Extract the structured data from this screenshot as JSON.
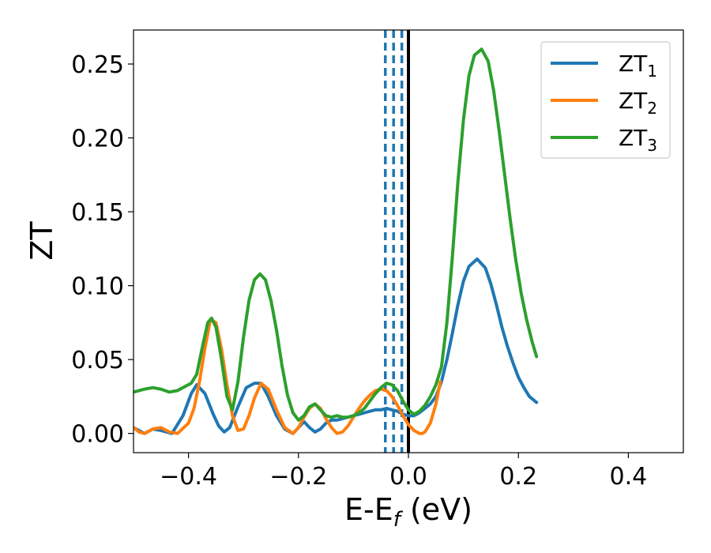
{
  "chart_data": {
    "type": "line",
    "title": "",
    "xlabel": {
      "main": "E-E",
      "sub": "f",
      "unit": " (eV)"
    },
    "ylabel": "ZT",
    "xlim": [
      -0.5,
      0.5
    ],
    "ylim": [
      -0.013,
      0.273
    ],
    "x_ticks": [
      -0.4,
      -0.2,
      0.0,
      0.2,
      0.4
    ],
    "x_tick_labels": [
      "−0.4",
      "−0.2",
      "0.0",
      "0.2",
      "0.4"
    ],
    "y_ticks": [
      0.0,
      0.05,
      0.1,
      0.15,
      0.2,
      0.25
    ],
    "y_tick_labels": [
      "0.00",
      "0.05",
      "0.10",
      "0.15",
      "0.20",
      "0.25"
    ],
    "grid": false,
    "legend_position": "top-right",
    "vertical_lines": [
      {
        "x": -0.042,
        "style": "dashed",
        "color": "#1f77b4"
      },
      {
        "x": -0.027,
        "style": "dashed",
        "color": "#1f77b4"
      },
      {
        "x": -0.012,
        "style": "dashed",
        "color": "#1f77b4"
      },
      {
        "x": 0.0,
        "style": "solid",
        "color": "#000000"
      }
    ],
    "series": [
      {
        "name": "ZT",
        "name_sub": "1",
        "color": "#1f77b4",
        "x": [
          -0.5,
          -0.48,
          -0.465,
          -0.45,
          -0.43,
          -0.41,
          -0.395,
          -0.385,
          -0.37,
          -0.355,
          -0.345,
          -0.335,
          -0.325,
          -0.31,
          -0.295,
          -0.28,
          -0.268,
          -0.255,
          -0.24,
          -0.225,
          -0.21,
          -0.2,
          -0.19,
          -0.18,
          -0.17,
          -0.16,
          -0.15,
          -0.14,
          -0.13,
          -0.12,
          -0.11,
          -0.1,
          -0.09,
          -0.08,
          -0.07,
          -0.06,
          -0.05,
          -0.04,
          -0.03,
          -0.02,
          -0.01,
          0.0,
          0.01,
          0.02,
          0.03,
          0.04,
          0.05,
          0.06,
          0.07,
          0.08,
          0.09,
          0.1,
          0.11,
          0.125,
          0.14,
          0.15,
          0.16,
          0.17,
          0.18,
          0.19,
          0.2,
          0.21,
          0.22,
          0.233
        ],
        "y": [
          0.004,
          0.0,
          0.003,
          0.002,
          0.0,
          0.012,
          0.027,
          0.033,
          0.027,
          0.013,
          0.005,
          0.001,
          0.004,
          0.018,
          0.031,
          0.034,
          0.034,
          0.025,
          0.012,
          0.003,
          0.0,
          0.004,
          0.008,
          0.004,
          0.001,
          0.003,
          0.007,
          0.009,
          0.009,
          0.01,
          0.011,
          0.012,
          0.013,
          0.014,
          0.015,
          0.016,
          0.016,
          0.017,
          0.016,
          0.015,
          0.013,
          0.012,
          0.012,
          0.014,
          0.017,
          0.02,
          0.025,
          0.035,
          0.05,
          0.068,
          0.087,
          0.103,
          0.113,
          0.118,
          0.112,
          0.101,
          0.087,
          0.072,
          0.059,
          0.048,
          0.038,
          0.031,
          0.025,
          0.021
        ]
      },
      {
        "name": "ZT",
        "name_sub": "2",
        "color": "#ff7f0e",
        "x": [
          -0.5,
          -0.49,
          -0.48,
          -0.465,
          -0.45,
          -0.435,
          -0.42,
          -0.4,
          -0.39,
          -0.38,
          -0.37,
          -0.36,
          -0.35,
          -0.34,
          -0.33,
          -0.32,
          -0.31,
          -0.3,
          -0.29,
          -0.28,
          -0.268,
          -0.255,
          -0.24,
          -0.225,
          -0.21,
          -0.2,
          -0.19,
          -0.18,
          -0.17,
          -0.16,
          -0.15,
          -0.14,
          -0.13,
          -0.12,
          -0.11,
          -0.1,
          -0.09,
          -0.08,
          -0.07,
          -0.06,
          -0.05,
          -0.04,
          -0.03,
          -0.02,
          -0.01,
          0.0,
          0.01,
          0.02,
          0.025,
          0.03,
          0.04,
          0.05,
          0.058
        ],
        "y": [
          0.004,
          0.001,
          0.0,
          0.003,
          0.004,
          0.001,
          0.0,
          0.007,
          0.017,
          0.035,
          0.058,
          0.077,
          0.075,
          0.057,
          0.033,
          0.012,
          0.002,
          0.003,
          0.012,
          0.024,
          0.034,
          0.03,
          0.016,
          0.004,
          0.0,
          0.004,
          0.011,
          0.017,
          0.02,
          0.017,
          0.01,
          0.004,
          0.0,
          0.001,
          0.005,
          0.011,
          0.017,
          0.022,
          0.026,
          0.029,
          0.03,
          0.029,
          0.025,
          0.019,
          0.012,
          0.006,
          0.002,
          0.0,
          0.0,
          0.001,
          0.007,
          0.02,
          0.035
        ]
      },
      {
        "name": "ZT",
        "name_sub": "3",
        "color": "#2ca02c",
        "x": [
          -0.5,
          -0.48,
          -0.465,
          -0.45,
          -0.435,
          -0.42,
          -0.405,
          -0.395,
          -0.385,
          -0.375,
          -0.365,
          -0.358,
          -0.35,
          -0.34,
          -0.33,
          -0.32,
          -0.31,
          -0.3,
          -0.29,
          -0.28,
          -0.27,
          -0.26,
          -0.25,
          -0.24,
          -0.23,
          -0.22,
          -0.21,
          -0.2,
          -0.19,
          -0.18,
          -0.17,
          -0.16,
          -0.15,
          -0.14,
          -0.13,
          -0.12,
          -0.11,
          -0.1,
          -0.09,
          -0.08,
          -0.07,
          -0.06,
          -0.05,
          -0.04,
          -0.03,
          -0.02,
          -0.01,
          0.0,
          0.01,
          0.02,
          0.03,
          0.04,
          0.05,
          0.06,
          0.07,
          0.08,
          0.09,
          0.1,
          0.11,
          0.12,
          0.133,
          0.145,
          0.155,
          0.165,
          0.175,
          0.185,
          0.195,
          0.205,
          0.215,
          0.225,
          0.233
        ],
        "y": [
          0.028,
          0.03,
          0.031,
          0.03,
          0.028,
          0.029,
          0.032,
          0.034,
          0.04,
          0.058,
          0.075,
          0.078,
          0.072,
          0.05,
          0.025,
          0.016,
          0.035,
          0.065,
          0.09,
          0.104,
          0.108,
          0.104,
          0.09,
          0.07,
          0.046,
          0.026,
          0.014,
          0.009,
          0.012,
          0.018,
          0.02,
          0.016,
          0.012,
          0.011,
          0.012,
          0.011,
          0.011,
          0.012,
          0.014,
          0.017,
          0.022,
          0.027,
          0.031,
          0.034,
          0.033,
          0.029,
          0.022,
          0.016,
          0.013,
          0.015,
          0.019,
          0.025,
          0.033,
          0.045,
          0.075,
          0.12,
          0.17,
          0.212,
          0.242,
          0.256,
          0.26,
          0.252,
          0.232,
          0.205,
          0.175,
          0.145,
          0.118,
          0.095,
          0.077,
          0.062,
          0.052
        ]
      }
    ]
  }
}
